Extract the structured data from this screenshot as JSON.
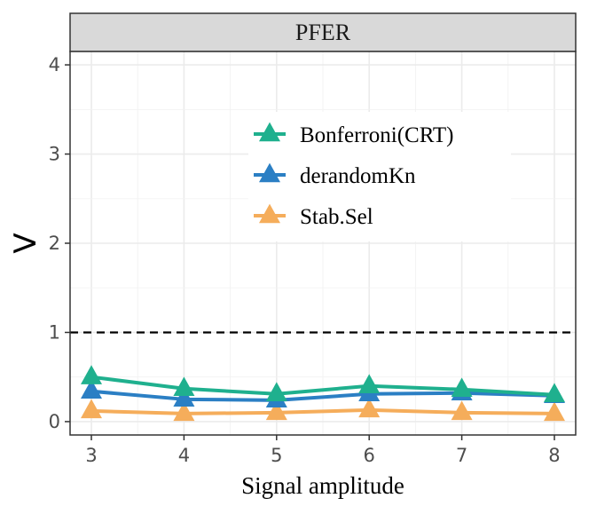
{
  "chart_data": {
    "type": "line",
    "panel_title": "PFER",
    "title": "",
    "xlabel": "Signal amplitude",
    "ylabel": "V",
    "x": [
      3,
      4,
      5,
      6,
      7,
      8
    ],
    "x_ticks": [
      "3",
      "4",
      "5",
      "6",
      "7",
      "8"
    ],
    "y_ticks": [
      "0",
      "1",
      "2",
      "3",
      "4"
    ],
    "xlim": [
      2.77,
      8.23
    ],
    "ylim": [
      -0.15,
      4.15
    ],
    "reference_line": {
      "y": 1,
      "style": "dashed",
      "color": "#000000"
    },
    "legend_position": "upper-center",
    "series": [
      {
        "name": "Bonferroni(CRT)",
        "color": "#1FB08E",
        "values": [
          0.5,
          0.37,
          0.31,
          0.4,
          0.36,
          0.3
        ]
      },
      {
        "name": "derandomKn",
        "color": "#2B7FC4",
        "values": [
          0.34,
          0.25,
          0.24,
          0.31,
          0.32,
          0.29
        ]
      },
      {
        "name": "Stab.Sel",
        "color": "#F5AD5B",
        "values": [
          0.12,
          0.09,
          0.1,
          0.13,
          0.1,
          0.09
        ]
      }
    ]
  }
}
